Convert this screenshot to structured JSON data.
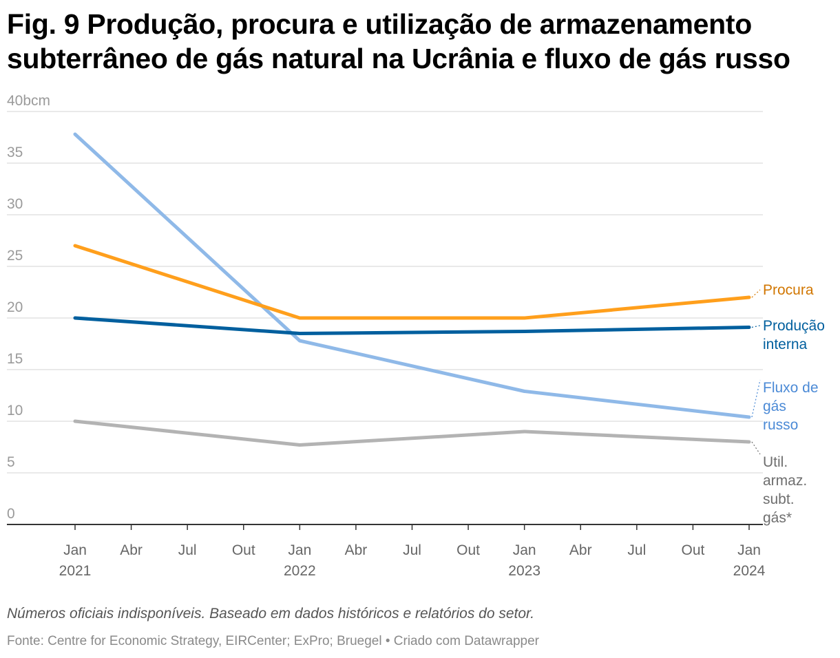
{
  "title": "Fig. 9 Produção, procura e utilização de armazenamento subterrâneo de gás natural na Ucrânia e fluxo de gás russo",
  "note": "Números oficiais indisponíveis. Baseado em dados históricos e relatórios do setor.",
  "source": "Fonte: Centre for Economic Strategy, EIRCenter; ExPro; Bruegel",
  "credit": "Criado com Datawrapper",
  "chart_data": {
    "type": "line",
    "title": "Fig. 9 Produção, procura e utilização de armazenamento subterrâneo de gás natural na Ucrânia e fluxo de gás russo",
    "ylabel": "",
    "xlabel": "",
    "unit_label": "bcm",
    "ylim": [
      0,
      40
    ],
    "yticks": [
      0,
      5,
      10,
      15,
      20,
      25,
      30,
      35,
      40
    ],
    "ytick_labels": [
      "0",
      "5",
      "10",
      "15",
      "20",
      "25",
      "30",
      "35",
      "40bcm"
    ],
    "xlim": [
      "2021-01",
      "2024-01"
    ],
    "xticks": [
      {
        "month": "2021-01",
        "label": "Jan",
        "year": "2021"
      },
      {
        "month": "2021-04",
        "label": "Abr",
        "year": ""
      },
      {
        "month": "2021-07",
        "label": "Jul",
        "year": ""
      },
      {
        "month": "2021-10",
        "label": "Out",
        "year": ""
      },
      {
        "month": "2022-01",
        "label": "Jan",
        "year": "2022"
      },
      {
        "month": "2022-04",
        "label": "Abr",
        "year": ""
      },
      {
        "month": "2022-07",
        "label": "Jul",
        "year": ""
      },
      {
        "month": "2022-10",
        "label": "Out",
        "year": ""
      },
      {
        "month": "2023-01",
        "label": "Jan",
        "year": "2023"
      },
      {
        "month": "2023-04",
        "label": "Abr",
        "year": ""
      },
      {
        "month": "2023-07",
        "label": "Jul",
        "year": ""
      },
      {
        "month": "2023-10",
        "label": "Out",
        "year": ""
      },
      {
        "month": "2024-01",
        "label": "Jan",
        "year": "2024"
      }
    ],
    "grid": true,
    "legend": "direct labels at right end of lines",
    "x": [
      "2021-01",
      "2022-01",
      "2023-01",
      "2024-01"
    ],
    "series": [
      {
        "name": "Procura",
        "label_lines": [
          "Procura"
        ],
        "color": "#ff9f1c",
        "label_color": "#d17600",
        "values": [
          27.0,
          20.0,
          20.0,
          22.0
        ]
      },
      {
        "name": "Produção interna",
        "label_lines": [
          "Produção",
          "interna"
        ],
        "color": "#005f9e",
        "label_color": "#005f9e",
        "values": [
          20.0,
          18.5,
          18.7,
          19.1
        ]
      },
      {
        "name": "Fluxo de gás russo",
        "label_lines": [
          "Fluxo de",
          "gás",
          "russo"
        ],
        "color": "#8fb9e8",
        "label_color": "#4b8ad6",
        "values": [
          37.8,
          17.8,
          12.9,
          10.4
        ]
      },
      {
        "name": "Util. armaz. subt. gás*",
        "label_lines": [
          "Util.",
          "armaz.",
          "subt.",
          "gás*"
        ],
        "color": "#b3b3b3",
        "label_color": "#6e6e6e",
        "values": [
          10.0,
          7.7,
          9.0,
          8.0
        ]
      }
    ]
  }
}
